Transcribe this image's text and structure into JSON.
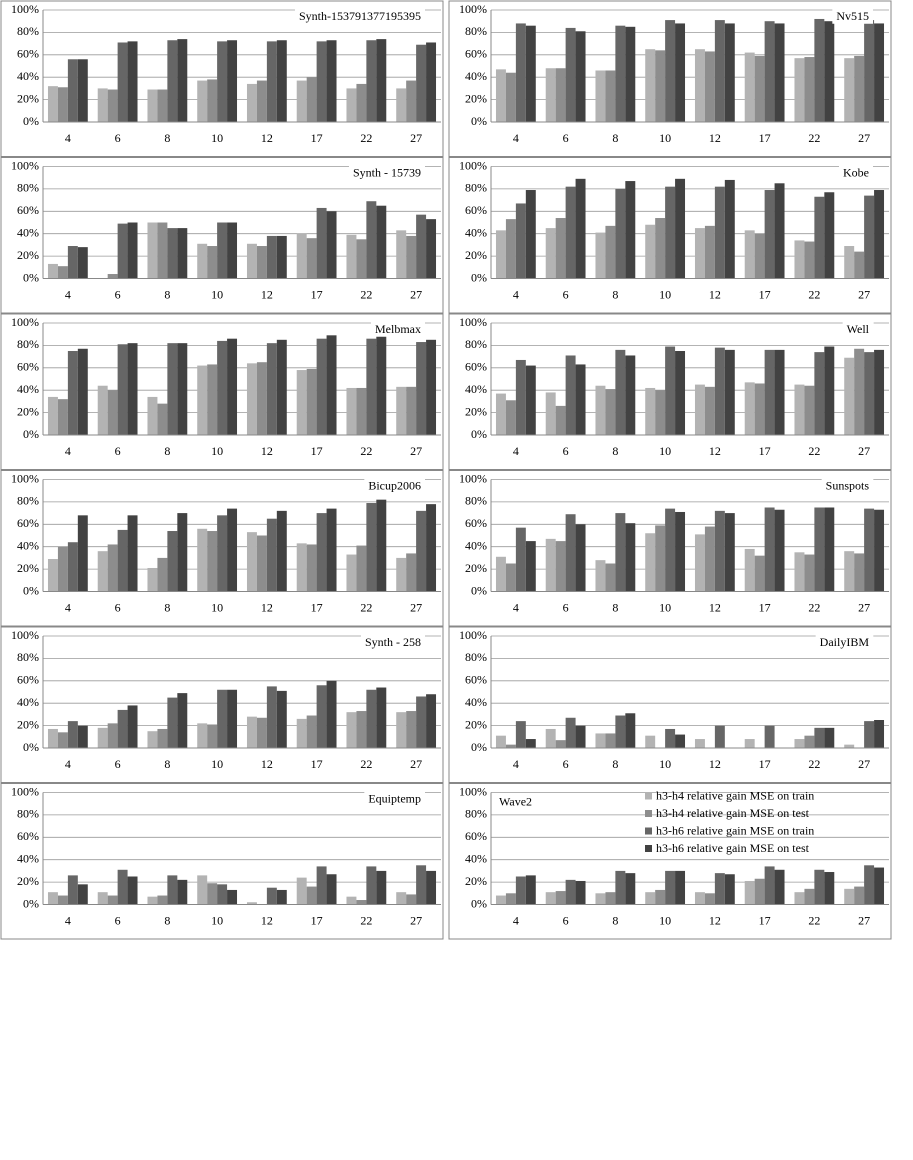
{
  "chart_data": [
    {
      "type": "bar",
      "title": "Synth-153791377195395",
      "categories": [
        "4",
        "6",
        "8",
        "10",
        "12",
        "17",
        "22",
        "27"
      ],
      "ylim": [
        0,
        100
      ],
      "grid": true,
      "yticks": [
        {
          "value": 0,
          "label": "0%"
        },
        {
          "value": 20,
          "label": "20%"
        },
        {
          "value": 40,
          "label": "40%"
        },
        {
          "value": 60,
          "label": "60%"
        },
        {
          "value": 80,
          "label": "80%"
        },
        {
          "value": 100,
          "label": "100%"
        }
      ],
      "series": [
        {
          "color": "#b3b3b3",
          "values": [
            32,
            30,
            29,
            37,
            34,
            37,
            30,
            30
          ]
        },
        {
          "color": "#8d8d8d",
          "values": [
            31,
            29,
            29,
            38,
            37,
            40,
            34,
            37
          ]
        },
        {
          "color": "#666666",
          "values": [
            56,
            71,
            73,
            72,
            72,
            72,
            73,
            69
          ]
        },
        {
          "color": "#424242",
          "values": [
            56,
            72,
            74,
            73,
            73,
            73,
            74,
            71
          ]
        }
      ]
    },
    {
      "type": "bar",
      "title": "Nv515",
      "categories": [
        "4",
        "6",
        "8",
        "10",
        "12",
        "17",
        "22",
        "27"
      ],
      "ylim": [
        0,
        100
      ],
      "grid": true,
      "yticks": [
        {
          "value": 0,
          "label": "0%"
        },
        {
          "value": 20,
          "label": "20%"
        },
        {
          "value": 40,
          "label": "40%"
        },
        {
          "value": 60,
          "label": "60%"
        },
        {
          "value": 80,
          "label": "80%"
        },
        {
          "value": 100,
          "label": "100%"
        }
      ],
      "series": [
        {
          "color": "#b3b3b3",
          "values": [
            47,
            48,
            46,
            65,
            65,
            62,
            57,
            57
          ]
        },
        {
          "color": "#8d8d8d",
          "values": [
            44,
            48,
            46,
            64,
            63,
            59,
            58,
            59
          ]
        },
        {
          "color": "#666666",
          "values": [
            88,
            84,
            86,
            91,
            91,
            90,
            92,
            91
          ]
        },
        {
          "color": "#424242",
          "values": [
            86,
            81,
            85,
            88,
            88,
            88,
            90,
            88
          ]
        }
      ]
    },
    {
      "type": "bar",
      "title": "Synth - 15739",
      "categories": [
        "4",
        "6",
        "8",
        "10",
        "12",
        "17",
        "22",
        "27"
      ],
      "ylim": [
        0,
        100
      ],
      "grid": true,
      "yticks": [
        {
          "value": 0,
          "label": "0%"
        },
        {
          "value": 20,
          "label": "20%"
        },
        {
          "value": 40,
          "label": "40%"
        },
        {
          "value": 60,
          "label": "60%"
        },
        {
          "value": 80,
          "label": "80%"
        },
        {
          "value": 100,
          "label": "100%"
        }
      ],
      "series": [
        {
          "color": "#b3b3b3",
          "values": [
            13,
            0,
            50,
            31,
            31,
            40,
            39,
            43
          ]
        },
        {
          "color": "#8d8d8d",
          "values": [
            11,
            4,
            50,
            29,
            29,
            36,
            35,
            38
          ]
        },
        {
          "color": "#666666",
          "values": [
            29,
            49,
            45,
            50,
            38,
            63,
            69,
            57
          ]
        },
        {
          "color": "#424242",
          "values": [
            28,
            50,
            45,
            50,
            38,
            60,
            65,
            53
          ]
        }
      ]
    },
    {
      "type": "bar",
      "title": "Kobe",
      "categories": [
        "4",
        "6",
        "8",
        "10",
        "12",
        "17",
        "22",
        "27"
      ],
      "ylim": [
        0,
        100
      ],
      "grid": true,
      "yticks": [
        {
          "value": 0,
          "label": "0%"
        },
        {
          "value": 20,
          "label": "20%"
        },
        {
          "value": 40,
          "label": "40%"
        },
        {
          "value": 60,
          "label": "60%"
        },
        {
          "value": 80,
          "label": "80%"
        },
        {
          "value": 100,
          "label": "100%"
        }
      ],
      "series": [
        {
          "color": "#b3b3b3",
          "values": [
            43,
            45,
            41,
            48,
            45,
            43,
            34,
            29
          ]
        },
        {
          "color": "#8d8d8d",
          "values": [
            53,
            54,
            47,
            54,
            47,
            40,
            33,
            24
          ]
        },
        {
          "color": "#666666",
          "values": [
            67,
            82,
            80,
            82,
            82,
            79,
            73,
            74
          ]
        },
        {
          "color": "#424242",
          "values": [
            79,
            89,
            87,
            89,
            88,
            85,
            77,
            79
          ]
        }
      ]
    },
    {
      "type": "bar",
      "title": "Melbmax",
      "categories": [
        "4",
        "6",
        "8",
        "10",
        "12",
        "17",
        "22",
        "27"
      ],
      "ylim": [
        0,
        100
      ],
      "grid": true,
      "yticks": [
        {
          "value": 0,
          "label": "0%"
        },
        {
          "value": 20,
          "label": "20%"
        },
        {
          "value": 40,
          "label": "40%"
        },
        {
          "value": 60,
          "label": "60%"
        },
        {
          "value": 80,
          "label": "80%"
        },
        {
          "value": 100,
          "label": "100%"
        }
      ],
      "series": [
        {
          "color": "#b3b3b3",
          "values": [
            34,
            44,
            34,
            62,
            64,
            58,
            42,
            43
          ]
        },
        {
          "color": "#8d8d8d",
          "values": [
            32,
            40,
            28,
            63,
            65,
            59,
            42,
            43
          ]
        },
        {
          "color": "#666666",
          "values": [
            75,
            81,
            82,
            84,
            82,
            86,
            86,
            83
          ]
        },
        {
          "color": "#424242",
          "values": [
            77,
            82,
            82,
            86,
            85,
            89,
            88,
            85
          ]
        }
      ]
    },
    {
      "type": "bar",
      "title": "Well",
      "categories": [
        "4",
        "6",
        "8",
        "10",
        "12",
        "17",
        "22",
        "27"
      ],
      "ylim": [
        0,
        100
      ],
      "grid": true,
      "yticks": [
        {
          "value": 0,
          "label": "0%"
        },
        {
          "value": 20,
          "label": "20%"
        },
        {
          "value": 40,
          "label": "40%"
        },
        {
          "value": 60,
          "label": "60%"
        },
        {
          "value": 80,
          "label": "80%"
        },
        {
          "value": 100,
          "label": "100%"
        }
      ],
      "series": [
        {
          "color": "#b3b3b3",
          "values": [
            37,
            38,
            44,
            42,
            45,
            47,
            45,
            69
          ]
        },
        {
          "color": "#8d8d8d",
          "values": [
            31,
            26,
            41,
            40,
            43,
            46,
            44,
            77
          ]
        },
        {
          "color": "#666666",
          "values": [
            67,
            71,
            76,
            79,
            78,
            76,
            74,
            74
          ]
        },
        {
          "color": "#424242",
          "values": [
            62,
            63,
            71,
            75,
            76,
            76,
            79,
            76
          ]
        }
      ]
    },
    {
      "type": "bar",
      "title": "Bicup2006",
      "categories": [
        "4",
        "6",
        "8",
        "10",
        "12",
        "17",
        "22",
        "27"
      ],
      "ylim": [
        0,
        100
      ],
      "grid": true,
      "yticks": [
        {
          "value": 0,
          "label": "0%"
        },
        {
          "value": 20,
          "label": "20%"
        },
        {
          "value": 40,
          "label": "40%"
        },
        {
          "value": 60,
          "label": "60%"
        },
        {
          "value": 80,
          "label": "80%"
        },
        {
          "value": 100,
          "label": "100%"
        }
      ],
      "series": [
        {
          "color": "#b3b3b3",
          "values": [
            29,
            36,
            21,
            56,
            53,
            43,
            33,
            30
          ]
        },
        {
          "color": "#8d8d8d",
          "values": [
            40,
            42,
            30,
            54,
            50,
            42,
            41,
            34
          ]
        },
        {
          "color": "#666666",
          "values": [
            44,
            55,
            54,
            68,
            65,
            70,
            79,
            72
          ]
        },
        {
          "color": "#424242",
          "values": [
            68,
            68,
            70,
            74,
            72,
            74,
            82,
            78
          ]
        }
      ]
    },
    {
      "type": "bar",
      "title": "Sunspots",
      "categories": [
        "4",
        "6",
        "8",
        "10",
        "12",
        "17",
        "22",
        "27"
      ],
      "ylim": [
        0,
        100
      ],
      "grid": true,
      "yticks": [
        {
          "value": 0,
          "label": "0%"
        },
        {
          "value": 20,
          "label": "20%"
        },
        {
          "value": 40,
          "label": "40%"
        },
        {
          "value": 60,
          "label": "60%"
        },
        {
          "value": 80,
          "label": "80%"
        },
        {
          "value": 100,
          "label": "100%"
        }
      ],
      "series": [
        {
          "color": "#b3b3b3",
          "values": [
            31,
            47,
            28,
            52,
            51,
            38,
            35,
            36
          ]
        },
        {
          "color": "#8d8d8d",
          "values": [
            25,
            45,
            25,
            59,
            58,
            32,
            33,
            34
          ]
        },
        {
          "color": "#666666",
          "values": [
            57,
            69,
            70,
            74,
            72,
            75,
            75,
            74
          ]
        },
        {
          "color": "#424242",
          "values": [
            45,
            60,
            61,
            71,
            70,
            73,
            75,
            73
          ]
        }
      ]
    },
    {
      "type": "bar",
      "title": "Synth - 258",
      "categories": [
        "4",
        "6",
        "8",
        "10",
        "12",
        "17",
        "22",
        "27"
      ],
      "ylim": [
        0,
        100
      ],
      "grid": true,
      "yticks": [
        {
          "value": 0,
          "label": "0%"
        },
        {
          "value": 20,
          "label": "20%"
        },
        {
          "value": 40,
          "label": "40%"
        },
        {
          "value": 60,
          "label": "60%"
        },
        {
          "value": 80,
          "label": "80%"
        },
        {
          "value": 100,
          "label": "100%"
        }
      ],
      "series": [
        {
          "color": "#b3b3b3",
          "values": [
            17,
            18,
            15,
            22,
            28,
            26,
            32,
            32
          ]
        },
        {
          "color": "#8d8d8d",
          "values": [
            14,
            22,
            17,
            21,
            27,
            29,
            33,
            33
          ]
        },
        {
          "color": "#666666",
          "values": [
            24,
            34,
            45,
            52,
            55,
            56,
            52,
            46
          ]
        },
        {
          "color": "#424242",
          "values": [
            20,
            38,
            49,
            52,
            51,
            60,
            54,
            48
          ]
        }
      ]
    },
    {
      "type": "bar",
      "title": "DailyIBM",
      "categories": [
        "4",
        "6",
        "8",
        "10",
        "12",
        "17",
        "22",
        "27"
      ],
      "ylim": [
        0,
        100
      ],
      "grid": true,
      "yticks": [
        {
          "value": 0,
          "label": "0%"
        },
        {
          "value": 20,
          "label": "20%"
        },
        {
          "value": 40,
          "label": "40%"
        },
        {
          "value": 60,
          "label": "60%"
        },
        {
          "value": 80,
          "label": "80%"
        },
        {
          "value": 100,
          "label": "100%"
        }
      ],
      "series": [
        {
          "color": "#b3b3b3",
          "values": [
            11,
            17,
            13,
            11,
            8,
            8,
            8,
            3
          ]
        },
        {
          "color": "#8d8d8d",
          "values": [
            3,
            7,
            13,
            0,
            0,
            0,
            11,
            0
          ]
        },
        {
          "color": "#666666",
          "values": [
            24,
            27,
            29,
            17,
            20,
            20,
            18,
            24
          ]
        },
        {
          "color": "#424242",
          "values": [
            8,
            20,
            31,
            12,
            0,
            0,
            18,
            25
          ]
        }
      ]
    },
    {
      "type": "bar",
      "title": "Equiptemp",
      "categories": [
        "4",
        "6",
        "8",
        "10",
        "12",
        "17",
        "22",
        "27"
      ],
      "ylim": [
        0,
        100
      ],
      "grid": true,
      "yticks": [
        {
          "value": 0,
          "label": "0%"
        },
        {
          "value": 20,
          "label": "20%"
        },
        {
          "value": 40,
          "label": "40%"
        },
        {
          "value": 60,
          "label": "60%"
        },
        {
          "value": 80,
          "label": "80%"
        },
        {
          "value": 100,
          "label": "100%"
        }
      ],
      "series": [
        {
          "color": "#b3b3b3",
          "values": [
            11,
            11,
            7,
            26,
            2,
            24,
            7,
            11
          ]
        },
        {
          "color": "#8d8d8d",
          "values": [
            8,
            8,
            8,
            19,
            0,
            16,
            4,
            9
          ]
        },
        {
          "color": "#666666",
          "values": [
            26,
            31,
            26,
            18,
            15,
            34,
            34,
            35
          ]
        },
        {
          "color": "#424242",
          "values": [
            18,
            25,
            22,
            13,
            13,
            27,
            30,
            30
          ]
        }
      ]
    },
    {
      "type": "bar",
      "title": "Wave2",
      "categories": [
        "4",
        "6",
        "8",
        "10",
        "12",
        "17",
        "22",
        "27"
      ],
      "ylim": [
        0,
        100
      ],
      "grid": true,
      "legend": "upper right",
      "yticks": [
        {
          "value": 0,
          "label": "0%"
        },
        {
          "value": 20,
          "label": "20%"
        },
        {
          "value": 40,
          "label": "40%"
        },
        {
          "value": 60,
          "label": "60%"
        },
        {
          "value": 80,
          "label": "80%"
        },
        {
          "value": 100,
          "label": "100%"
        }
      ],
      "series": [
        {
          "name": "h3-h4 relative gain MSE on train",
          "color": "#b3b3b3",
          "values": [
            8,
            11,
            10,
            11,
            11,
            21,
            11,
            14
          ]
        },
        {
          "name": "h3-h4 relative gain MSE on test",
          "color": "#8d8d8d",
          "values": [
            10,
            12,
            11,
            13,
            10,
            23,
            14,
            16
          ]
        },
        {
          "name": "h3-h6 relative gain MSE on train",
          "color": "#666666",
          "values": [
            25,
            22,
            30,
            30,
            28,
            34,
            31,
            35
          ]
        },
        {
          "name": "h3-h6 relative gain MSE on test",
          "color": "#424242",
          "values": [
            26,
            21,
            28,
            30,
            27,
            31,
            29,
            33
          ]
        }
      ]
    }
  ]
}
